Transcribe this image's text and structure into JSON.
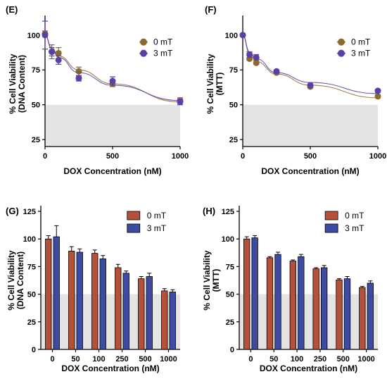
{
  "colors": {
    "mt0_line": "#8B6A2E",
    "mt3_line": "#5B3FA8",
    "mt0_bar": "#B5513A",
    "mt3_bar": "#3D4BA3",
    "shade": "#E4E4E4",
    "axis": "#000000"
  },
  "chart_data": [
    {
      "panel": "(E)",
      "type": "scatter",
      "xlabel": "DOX Concentration (nM)",
      "ylabel": [
        "% Cell Viability",
        "(DNA Content)"
      ],
      "xlim": [
        0,
        1000
      ],
      "ylim": [
        20,
        110
      ],
      "xticks": [
        "0",
        "500",
        "1000"
      ],
      "yticks": [
        "25",
        "50",
        "75",
        "100"
      ],
      "shade_below": 50,
      "legend_position": "right",
      "series": [
        {
          "name": "0 mT",
          "color_key": "mt0_line",
          "x": [
            0,
            50,
            100,
            250,
            500,
            1000
          ],
          "y": [
            101,
            88,
            87,
            74,
            65,
            53
          ],
          "err": [
            2,
            5,
            4,
            3,
            2,
            2
          ],
          "fit": [
            100,
            91,
            85,
            75,
            65,
            52
          ]
        },
        {
          "name": "3 mT",
          "color_key": "mt3_line",
          "x": [
            0,
            50,
            100,
            250,
            500,
            1000
          ],
          "y": [
            100,
            88,
            82,
            69,
            67,
            52
          ],
          "err": [
            10,
            3,
            3,
            2,
            3,
            2
          ],
          "fit": [
            100,
            90,
            84,
            73,
            64,
            53
          ]
        }
      ]
    },
    {
      "panel": "(F)",
      "type": "scatter",
      "xlabel": "DOX Concentration (nM)",
      "ylabel": [
        "% Cell Viability",
        "(MTT)"
      ],
      "xlim": [
        0,
        1000
      ],
      "ylim": [
        20,
        110
      ],
      "xticks": [
        "0",
        "500",
        "1000"
      ],
      "yticks": [
        "25",
        "50",
        "75",
        "100"
      ],
      "shade_below": 50,
      "legend_position": "right",
      "series": [
        {
          "name": "0 mT",
          "color_key": "mt0_line",
          "x": [
            0,
            50,
            100,
            250,
            500,
            1000
          ],
          "y": [
            100,
            83,
            80,
            73,
            63,
            56
          ],
          "err": [
            1,
            1,
            1,
            1,
            1,
            1
          ],
          "fit": [
            100,
            87,
            81,
            72,
            64,
            55
          ]
        },
        {
          "name": "3 mT",
          "color_key": "mt3_line",
          "x": [
            0,
            50,
            100,
            250,
            500,
            1000
          ],
          "y": [
            100,
            86,
            84,
            74,
            64,
            60
          ],
          "err": [
            1,
            2,
            2,
            1,
            1,
            1
          ],
          "fit": [
            100,
            88,
            83,
            73,
            66,
            58
          ]
        }
      ]
    },
    {
      "panel": "(G)",
      "type": "bar",
      "xlabel": "DOX Concentration (nM)",
      "ylabel": [
        "% Cell Viability",
        "(DNA Content)"
      ],
      "ylim": [
        0,
        125
      ],
      "yticks": [
        "0",
        "25",
        "50",
        "75",
        "100",
        "125"
      ],
      "categories": [
        "0",
        "50",
        "100",
        "250",
        "500",
        "1000"
      ],
      "shade_below": 50,
      "legend_position": "top-right",
      "series": [
        {
          "name": "0 mT",
          "color_key": "mt0_bar",
          "values": [
            100,
            89,
            87,
            74,
            64,
            53
          ],
          "err": [
            3,
            4,
            3,
            3,
            2,
            2
          ]
        },
        {
          "name": "3 mT",
          "color_key": "mt3_bar",
          "values": [
            102,
            88,
            82,
            69,
            66,
            52
          ],
          "err": [
            10,
            3,
            3,
            2,
            3,
            2
          ]
        }
      ]
    },
    {
      "panel": "(H)",
      "type": "bar",
      "xlabel": "DOX Concentration (nM)",
      "ylabel": [
        "% Cell Viability",
        "(MTT)"
      ],
      "ylim": [
        0,
        125
      ],
      "yticks": [
        "0",
        "25",
        "50",
        "75",
        "100",
        "125"
      ],
      "categories": [
        "0",
        "50",
        "100",
        "250",
        "500",
        "1000"
      ],
      "shade_below": 50,
      "legend_position": "top-right",
      "series": [
        {
          "name": "0 mT",
          "color_key": "mt0_bar",
          "values": [
            100,
            83,
            80,
            73,
            63,
            56
          ],
          "err": [
            2,
            1,
            1,
            1,
            1,
            1
          ]
        },
        {
          "name": "3 mT",
          "color_key": "mt3_bar",
          "values": [
            101,
            86,
            84,
            74,
            64,
            60
          ],
          "err": [
            2,
            2,
            2,
            2,
            2,
            2
          ]
        }
      ]
    }
  ]
}
